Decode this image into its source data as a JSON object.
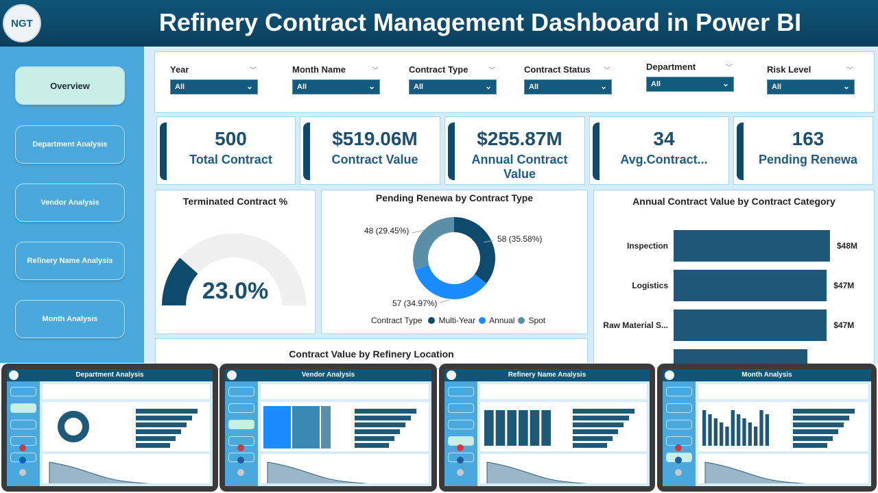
{
  "header": {
    "title": "Refinery Contract Management Dashboard in Power BI",
    "logo_text": "NGT"
  },
  "sidebar": {
    "items": [
      {
        "label": "Overview",
        "active": true
      },
      {
        "label": "Department Analysis"
      },
      {
        "label": "Vendor Analysis"
      },
      {
        "label": "Refinery Name Analysis"
      },
      {
        "label": "Month Analysis"
      }
    ]
  },
  "filters": [
    {
      "label": "Year",
      "value": "All"
    },
    {
      "label": "Month Name",
      "value": "All"
    },
    {
      "label": "Contract Type",
      "value": "All"
    },
    {
      "label": "Contract Status",
      "value": "All"
    },
    {
      "label": "Department",
      "value": "All"
    },
    {
      "label": "Risk Level",
      "value": "All"
    }
  ],
  "kpis": [
    {
      "value": "500",
      "label": "Total Contract"
    },
    {
      "value": "$519.06M",
      "label": "Contract Value"
    },
    {
      "value": "$255.87M",
      "label": "Annual Contract Value"
    },
    {
      "value": "34",
      "label": "Avg.Contract..."
    },
    {
      "value": "163",
      "label": "Pending Renewa"
    }
  ],
  "colors": {
    "primary": "#0d4a6b",
    "annual": "#1a8cff",
    "spot": "#5b8fa8",
    "bar": "#1e5a78",
    "sidebar": "#4aa8dc"
  },
  "chart_data": [
    {
      "type": "gauge",
      "title": "Terminated Contract %",
      "value": 23.0,
      "display": "23.0%",
      "range": [
        0,
        100
      ]
    },
    {
      "type": "pie",
      "title": "Pending Renewa by Contract Type",
      "legend_title": "Contract Type",
      "legend_position": "bottom",
      "series": [
        {
          "name": "Multi-Year",
          "value": 58,
          "label": "58 (35.58%)"
        },
        {
          "name": "Annual",
          "value": 57,
          "label": "57 (34.97%)"
        },
        {
          "name": "Spot",
          "value": 48,
          "label": "48 (29.45%)"
        }
      ]
    },
    {
      "type": "bar",
      "title": "Annual Contract Value by Contract Category",
      "categories": [
        "Inspection",
        "Logistics",
        "Raw Material S...",
        ""
      ],
      "values": [
        48,
        47,
        47,
        41
      ],
      "labels": [
        "$48M",
        "$47M",
        "$47M",
        ""
      ],
      "unit": "$M"
    },
    {
      "type": "area",
      "title": "Contract Value by Refinery Location"
    }
  ],
  "thumbnails": [
    {
      "title": "Department Analysis",
      "active": 1
    },
    {
      "title": "Vendor Analysis",
      "active": 2
    },
    {
      "title": "Refinery Name Analysis",
      "active": 3
    },
    {
      "title": "Month Analysis",
      "active": 4
    }
  ]
}
